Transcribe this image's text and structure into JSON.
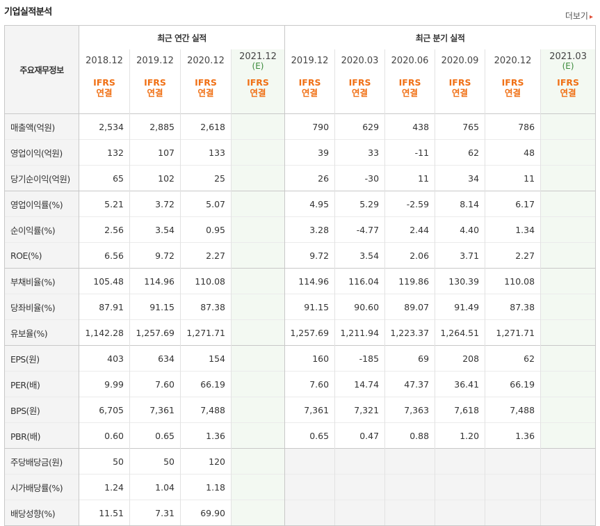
{
  "title": "기업실적분석",
  "more_label": "더보기",
  "header": {
    "row_label": "주요재무정보",
    "annual_group": "최근 연간 실적",
    "quarter_group": "최근 분기 실적",
    "annual_periods": [
      "2018.12",
      "2019.12",
      "2020.12",
      "2021.12"
    ],
    "quarter_periods": [
      "2019.12",
      "2020.03",
      "2020.06",
      "2020.09",
      "2020.12",
      "2021.03"
    ],
    "estimate_mark": "(E)",
    "ifrs_top": "IFRS",
    "ifrs_bottom": "연결"
  },
  "rows": [
    {
      "label": "매출액(억원)",
      "annual": [
        "2,534",
        "2,885",
        "2,618",
        ""
      ],
      "quarter": [
        "790",
        "629",
        "438",
        "765",
        "786",
        ""
      ]
    },
    {
      "label": "영업이익(억원)",
      "annual": [
        "132",
        "107",
        "133",
        ""
      ],
      "quarter": [
        "39",
        "33",
        "-11",
        "62",
        "48",
        ""
      ]
    },
    {
      "label": "당기순이익(억원)",
      "annual": [
        "65",
        "102",
        "25",
        ""
      ],
      "quarter": [
        "26",
        "-30",
        "11",
        "34",
        "11",
        ""
      ]
    },
    {
      "label": "영업이익률(%)",
      "annual": [
        "5.21",
        "3.72",
        "5.07",
        ""
      ],
      "quarter": [
        "4.95",
        "5.29",
        "-2.59",
        "8.14",
        "6.17",
        ""
      ]
    },
    {
      "label": "순이익률(%)",
      "annual": [
        "2.56",
        "3.54",
        "0.95",
        ""
      ],
      "quarter": [
        "3.28",
        "-4.77",
        "2.44",
        "4.40",
        "1.34",
        ""
      ]
    },
    {
      "label": "ROE(%)",
      "annual": [
        "6.56",
        "9.72",
        "2.27",
        ""
      ],
      "quarter": [
        "9.72",
        "3.54",
        "2.06",
        "3.71",
        "2.27",
        ""
      ]
    },
    {
      "label": "부채비율(%)",
      "annual": [
        "105.48",
        "114.96",
        "110.08",
        ""
      ],
      "quarter": [
        "114.96",
        "116.04",
        "119.86",
        "130.39",
        "110.08",
        ""
      ]
    },
    {
      "label": "당좌비율(%)",
      "annual": [
        "87.91",
        "91.15",
        "87.38",
        ""
      ],
      "quarter": [
        "91.15",
        "90.60",
        "89.07",
        "91.49",
        "87.38",
        ""
      ]
    },
    {
      "label": "유보율(%)",
      "annual": [
        "1,142.28",
        "1,257.69",
        "1,271.71",
        ""
      ],
      "quarter": [
        "1,257.69",
        "1,211.94",
        "1,223.37",
        "1,264.51",
        "1,271.71",
        ""
      ]
    },
    {
      "label": "EPS(원)",
      "annual": [
        "403",
        "634",
        "154",
        ""
      ],
      "quarter": [
        "160",
        "-185",
        "69",
        "208",
        "62",
        ""
      ]
    },
    {
      "label": "PER(배)",
      "annual": [
        "9.99",
        "7.60",
        "66.19",
        ""
      ],
      "quarter": [
        "7.60",
        "14.74",
        "47.37",
        "36.41",
        "66.19",
        ""
      ]
    },
    {
      "label": "BPS(원)",
      "annual": [
        "6,705",
        "7,361",
        "7,488",
        ""
      ],
      "quarter": [
        "7,361",
        "7,321",
        "7,363",
        "7,618",
        "7,488",
        ""
      ]
    },
    {
      "label": "PBR(배)",
      "annual": [
        "0.60",
        "0.65",
        "1.36",
        ""
      ],
      "quarter": [
        "0.65",
        "0.47",
        "0.88",
        "1.20",
        "1.36",
        ""
      ]
    },
    {
      "label": "주당배당금(원)",
      "annual": [
        "50",
        "50",
        "120",
        ""
      ],
      "quarter": [
        "",
        "",
        "",
        "",
        "",
        ""
      ]
    },
    {
      "label": "시가배당률(%)",
      "annual": [
        "1.24",
        "1.04",
        "1.18",
        ""
      ],
      "quarter": [
        "",
        "",
        "",
        "",
        "",
        ""
      ]
    },
    {
      "label": "배당성향(%)",
      "annual": [
        "11.51",
        "7.31",
        "69.90",
        ""
      ],
      "quarter": [
        "",
        "",
        "",
        "",
        "",
        ""
      ]
    }
  ]
}
